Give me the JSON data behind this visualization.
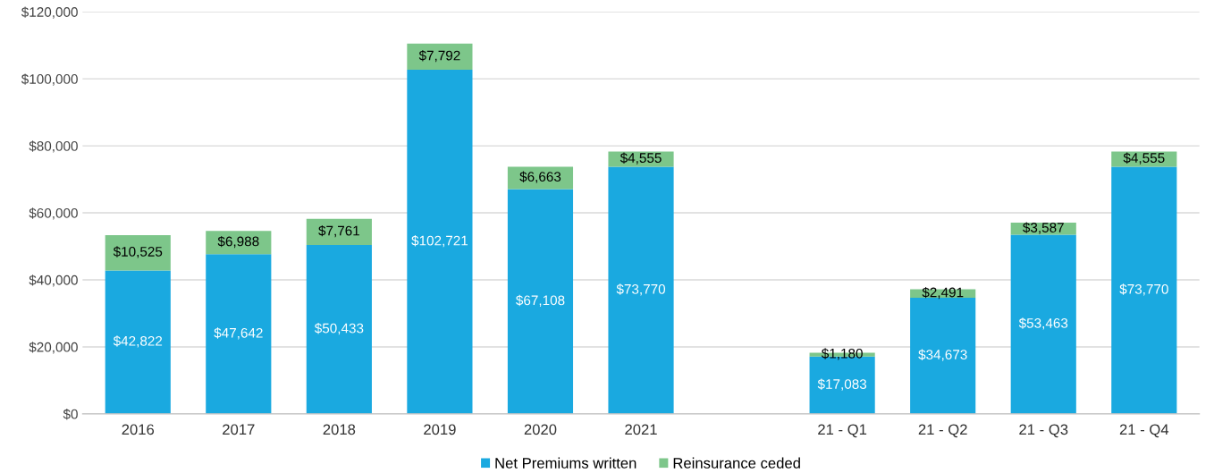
{
  "chart_data": {
    "type": "bar",
    "stacked": true,
    "categories": [
      "2016",
      "2017",
      "2018",
      "2019",
      "2020",
      "2021",
      null,
      "21 - Q1",
      "21 - Q2",
      "21 - Q3",
      "21 - Q4"
    ],
    "series": [
      {
        "name": "Net Premiums written",
        "color": "#1aa9e0",
        "values": [
          42822,
          47642,
          50433,
          102721,
          67108,
          73770,
          null,
          17083,
          34673,
          53463,
          73770
        ],
        "value_labels": [
          "$42,822",
          "$47,642",
          "$50,433",
          "$102,721",
          "$67,108",
          "$73,770",
          null,
          "$17,083",
          "$34,673",
          "$53,463",
          "$73,770"
        ]
      },
      {
        "name": "Reinsurance ceded",
        "color": "#7dc68a",
        "values": [
          10525,
          6988,
          7761,
          7792,
          6663,
          4555,
          null,
          1180,
          2491,
          3587,
          4555
        ],
        "value_labels": [
          "$10,525",
          "$6,988",
          "$7,761",
          "$7,792",
          "$6,663",
          "$4,555",
          null,
          "$1,180",
          "$2,491",
          "$3,587",
          "$4,555"
        ]
      }
    ],
    "ylim": [
      0,
      120000
    ],
    "yticks": [
      {
        "value": 0,
        "label": "$0"
      },
      {
        "value": 20000,
        "label": "$20,000"
      },
      {
        "value": 40000,
        "label": "$40,000"
      },
      {
        "value": 60000,
        "label": "$60,000"
      },
      {
        "value": 80000,
        "label": "$80,000"
      },
      {
        "value": 100000,
        "label": "$100,000"
      },
      {
        "value": 120000,
        "label": "$120,000"
      }
    ],
    "grid": "y",
    "legend": "bottom"
  }
}
